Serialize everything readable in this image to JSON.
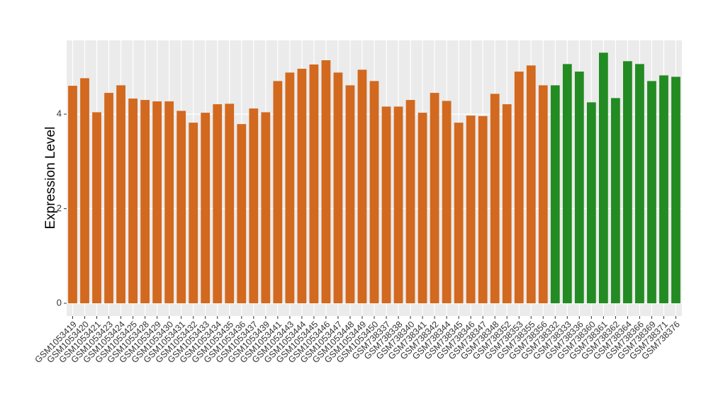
{
  "chart_data": {
    "type": "bar",
    "y_label": "Expression Level",
    "categories": [
      "GSM1053419",
      "GSM1053420",
      "GSM1053421",
      "GSM1053423",
      "GSM1053424",
      "GSM1053425",
      "GSM1053428",
      "GSM1053429",
      "GSM1053430",
      "GSM1053431",
      "GSM1053432",
      "GSM1053433",
      "GSM1053434",
      "GSM1053435",
      "GSM1053436",
      "GSM1053437",
      "GSM1053439",
      "GSM1053441",
      "GSM1053443",
      "GSM1053444",
      "GSM1053445",
      "GSM1053446",
      "GSM1053447",
      "GSM1053448",
      "GSM1053449",
      "GSM1053450",
      "GSM738337",
      "GSM738338",
      "GSM738340",
      "GSM738341",
      "GSM738342",
      "GSM738344",
      "GSM738345",
      "GSM738346",
      "GSM738347",
      "GSM738348",
      "GSM738352",
      "GSM738353",
      "GSM738355",
      "GSM738356",
      "GSM738332",
      "GSM738333",
      "GSM738336",
      "GSM738360",
      "GSM738361",
      "GSM738362",
      "GSM738364",
      "GSM738366",
      "GSM738369",
      "GSM738371",
      "GSM738376"
    ],
    "values": [
      4.6,
      4.76,
      4.04,
      4.45,
      4.61,
      4.33,
      4.3,
      4.27,
      4.27,
      4.07,
      3.82,
      4.03,
      4.21,
      4.22,
      3.79,
      4.12,
      4.04,
      4.7,
      4.88,
      4.96,
      5.05,
      5.14,
      4.88,
      4.61,
      4.94,
      4.7,
      4.16,
      4.16,
      4.3,
      4.03,
      4.45,
      4.28,
      3.82,
      3.97,
      3.96,
      4.43,
      4.21,
      4.9,
      5.03,
      4.61,
      4.61,
      5.06,
      4.9,
      4.25,
      5.3,
      4.34,
      5.12,
      5.06,
      4.7,
      4.82,
      4.79
    ],
    "colors": [
      "#d2691e",
      "#d2691e",
      "#d2691e",
      "#d2691e",
      "#d2691e",
      "#d2691e",
      "#d2691e",
      "#d2691e",
      "#d2691e",
      "#d2691e",
      "#d2691e",
      "#d2691e",
      "#d2691e",
      "#d2691e",
      "#d2691e",
      "#d2691e",
      "#d2691e",
      "#d2691e",
      "#d2691e",
      "#d2691e",
      "#d2691e",
      "#d2691e",
      "#d2691e",
      "#d2691e",
      "#d2691e",
      "#d2691e",
      "#d2691e",
      "#d2691e",
      "#d2691e",
      "#d2691e",
      "#d2691e",
      "#d2691e",
      "#d2691e",
      "#d2691e",
      "#d2691e",
      "#d2691e",
      "#d2691e",
      "#d2691e",
      "#d2691e",
      "#d2691e",
      "#228b22",
      "#228b22",
      "#228b22",
      "#228b22",
      "#228b22",
      "#228b22",
      "#228b22",
      "#228b22",
      "#228b22",
      "#228b22",
      "#228b22"
    ],
    "ylim": [
      -0.27,
      5.56
    ],
    "yticks": [
      0,
      2,
      4
    ],
    "grid": true
  }
}
